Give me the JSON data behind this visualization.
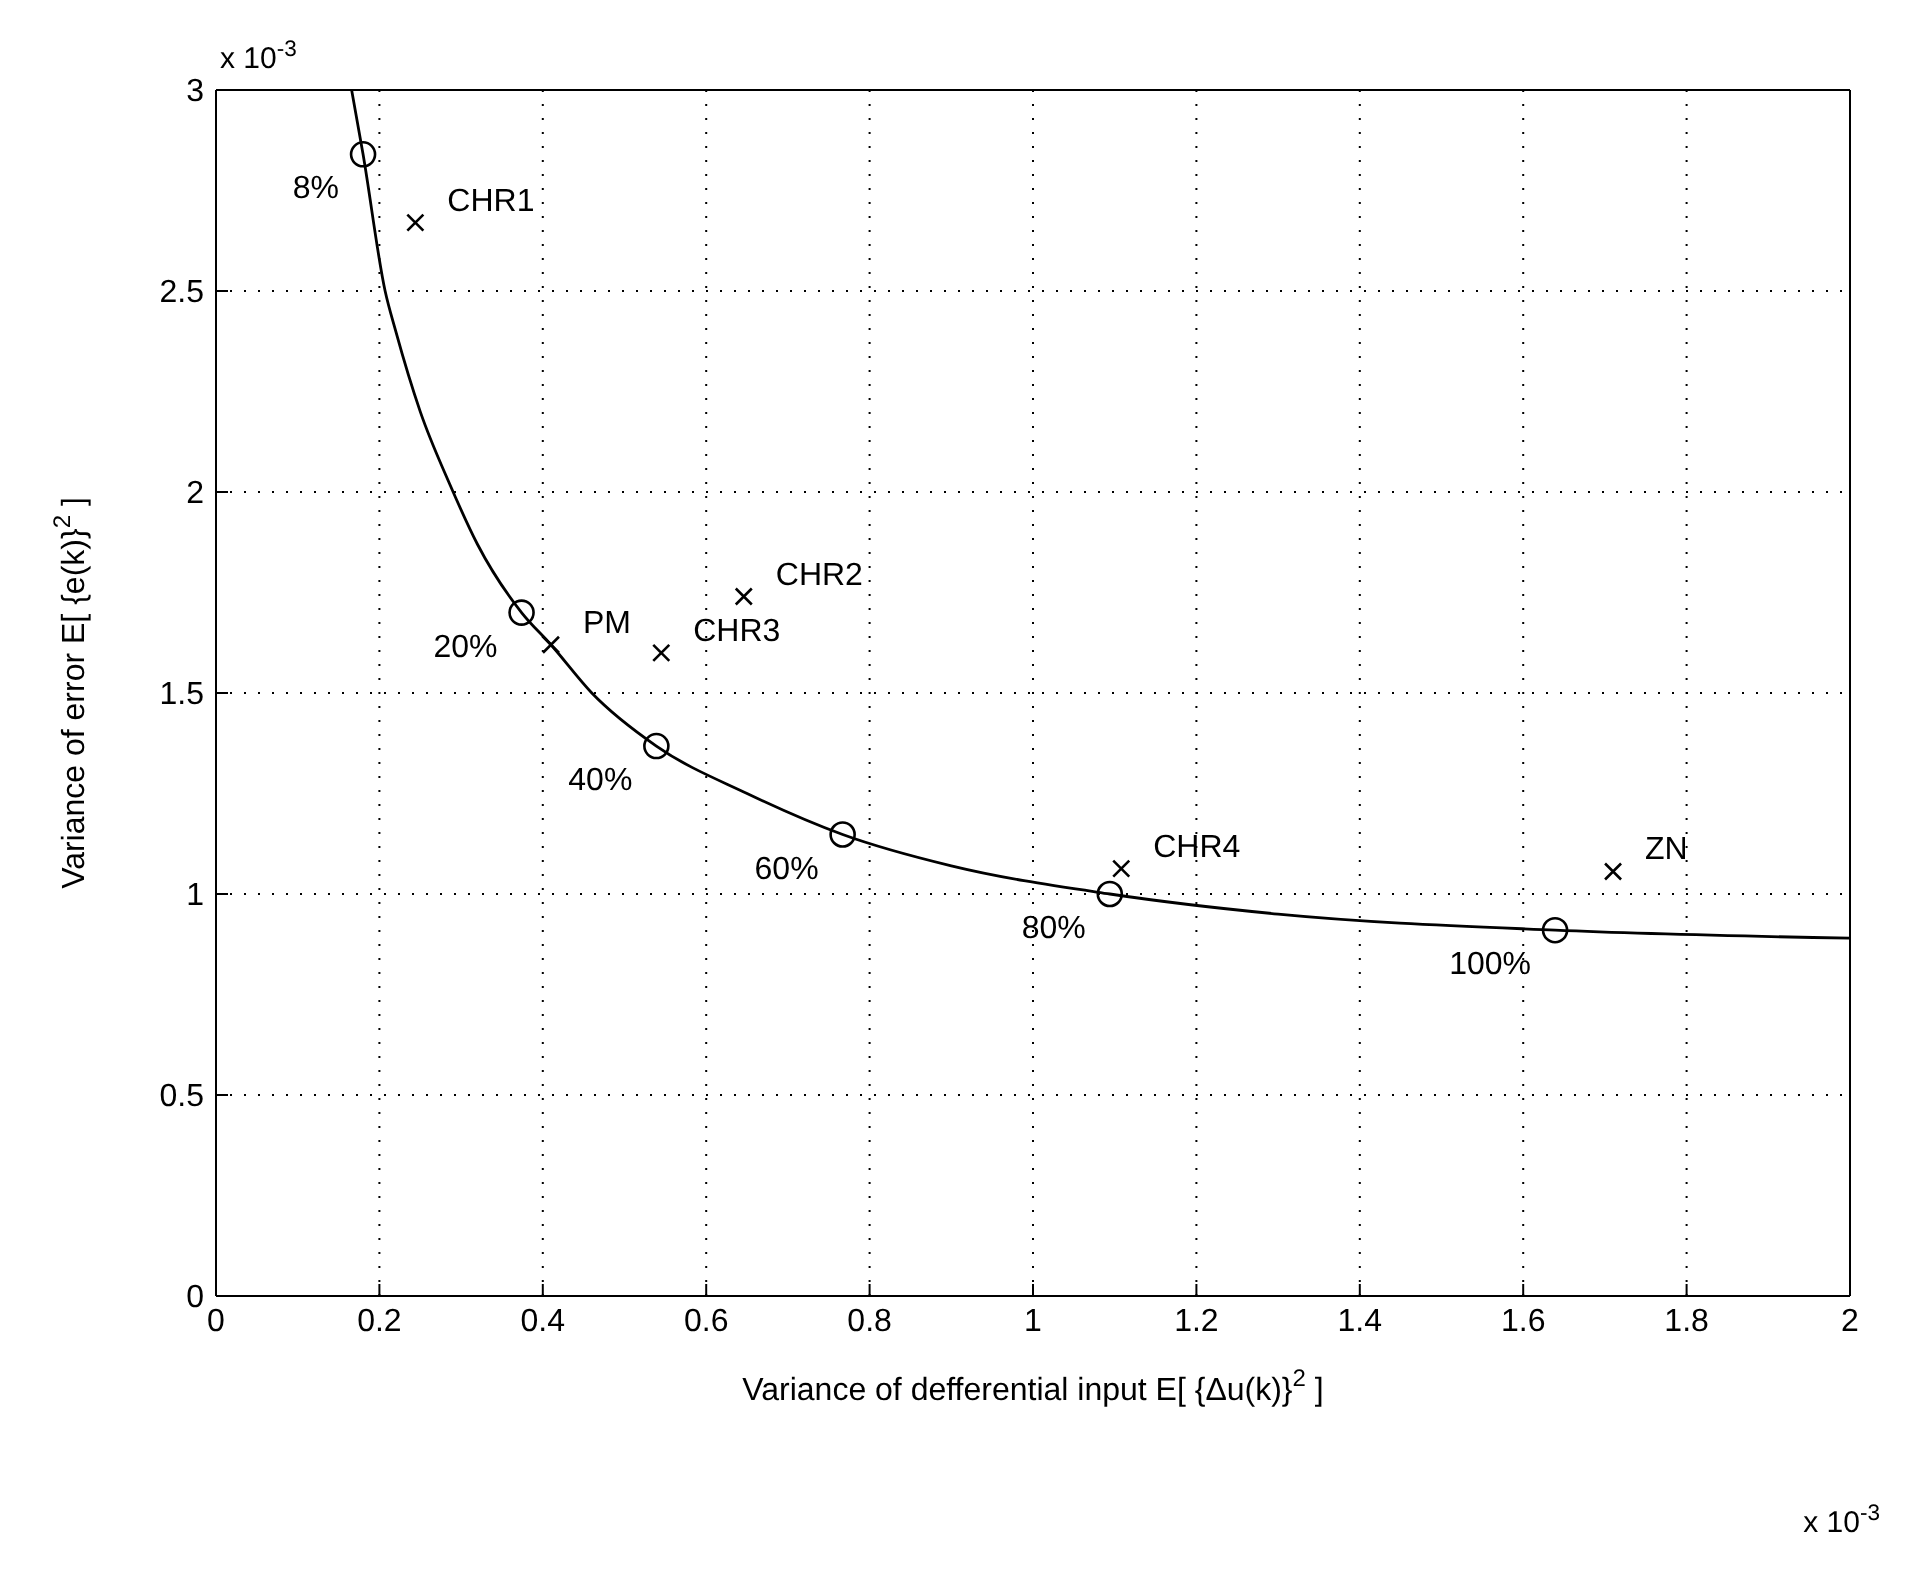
{
  "chart_data": {
    "type": "scatter",
    "xlabel": "Variance of defferential input   E[ {Δu(k)}$^{2}$ ]",
    "ylabel": "Variance of error   E[ {e(k)}$^{2}$ ]",
    "annotations": [
      "x 10$^{-3}$",
      "x 10$^{-3}$",
      {
        "text": "8%",
        "x": 0.18,
        "y": 2.84
      },
      {
        "text": "20%",
        "x": 0.374,
        "y": 1.7
      },
      {
        "text": "40%",
        "x": 0.539,
        "y": 1.368
      },
      {
        "text": "60%",
        "x": 0.767,
        "y": 1.148
      },
      {
        "text": "80%",
        "x": 1.094,
        "y": 1.0
      },
      {
        "text": "100%",
        "x": 1.639,
        "y": 0.91
      },
      {
        "text": "CHR1",
        "x": 0.244,
        "y": 2.67
      },
      {
        "text": "PM",
        "x": 0.41,
        "y": 1.62
      },
      {
        "text": "CHR3",
        "x": 0.545,
        "y": 1.6
      },
      {
        "text": "CHR2",
        "x": 0.646,
        "y": 1.74
      },
      {
        "text": "CHR4",
        "x": 1.108,
        "y": 1.063
      },
      {
        "text": "ZN",
        "x": 1.71,
        "y": 1.056
      }
    ],
    "xlim": [
      0,
      2
    ],
    "xticks": [
      0,
      0.2,
      0.4,
      0.6,
      0.8,
      1,
      1.2,
      1.4,
      1.6,
      1.8,
      2
    ],
    "ylim": [
      0,
      3
    ],
    "yticks": [
      0,
      0.5,
      1,
      1.5,
      2,
      2.5,
      3
    ],
    "grid": true,
    "series": [
      {
        "type": "line",
        "color": "#000000",
        "marker": "none",
        "line_style": "solid",
        "x": [
          0.166,
          0.18,
          0.207,
          0.22,
          0.25,
          0.286,
          0.32,
          0.374,
          0.41,
          0.46,
          0.539,
          0.65,
          0.767,
          0.9,
          1.094,
          1.3,
          1.639,
          2
        ],
        "values": [
          3,
          2.84,
          2.5,
          2.4,
          2.2,
          2.02,
          1.87,
          1.7,
          1.62,
          1.5,
          1.368,
          1.25,
          1.148,
          1.07,
          1.0,
          0.95,
          0.91,
          0.89
        ]
      },
      {
        "color": "#000000",
        "marker": "circle",
        "x": [
          0.18,
          0.374,
          0.539,
          0.767,
          1.094,
          1.639
        ],
        "values": [
          2.84,
          1.7,
          1.368,
          1.148,
          1.0,
          0.91
        ]
      },
      {
        "color": "#000000",
        "marker": "cross",
        "x": [
          0.244,
          0.41,
          0.545,
          0.646,
          1.108,
          1.71
        ],
        "values": [
          2.67,
          1.62,
          1.6,
          1.74,
          1.063,
          1.056
        ]
      }
    ]
  }
}
